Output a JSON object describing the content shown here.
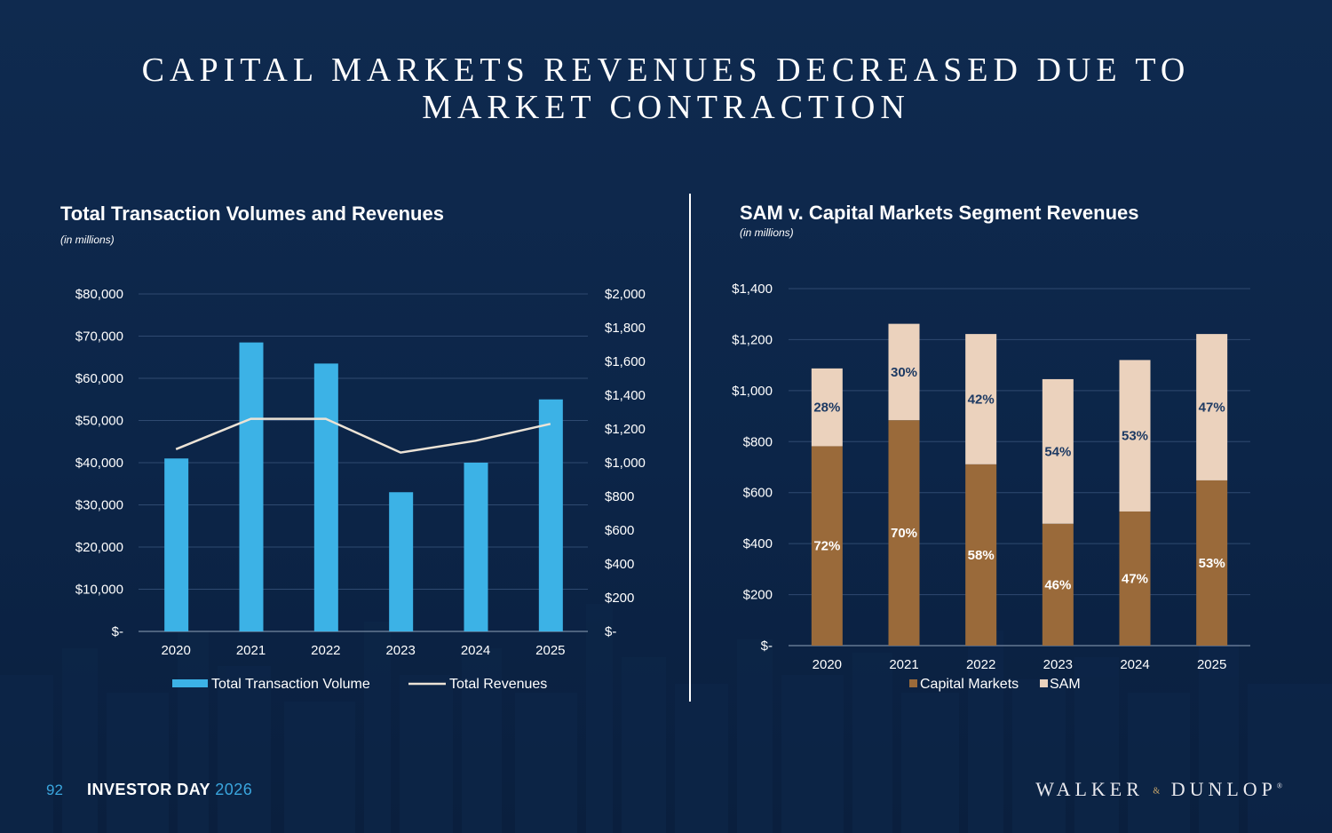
{
  "slide": {
    "title_line1": "CAPITAL MARKETS REVENUES DECREASED DUE TO",
    "title_line2": "MARKET CONTRACTION",
    "footer_page": "92",
    "footer_event": "INVESTOR DAY",
    "footer_year": "2026",
    "logo_left": "WALKER",
    "logo_amp": "&",
    "logo_right": "DUNLOP",
    "logo_reg": "®"
  },
  "colors": {
    "background": "#0c2548",
    "volume_bar": "#3cb2e6",
    "revenue_line": "#ece3d6",
    "capital_markets": "#9a6a3a",
    "sam": "#ebd2bd",
    "grid": "#2f4a70"
  },
  "chart_data": [
    {
      "type": "bar",
      "title": "Total Transaction Volumes and Revenues",
      "subtitle": "(in millions)",
      "categories": [
        "2020",
        "2021",
        "2022",
        "2023",
        "2024",
        "2025"
      ],
      "y_ticks": [
        "$-",
        "$10,000",
        "$20,000",
        "$30,000",
        "$40,000",
        "$50,000",
        "$60,000",
        "$70,000",
        "$80,000"
      ],
      "y2_ticks": [
        "$-",
        "$200",
        "$400",
        "$600",
        "$800",
        "$1,000",
        "$1,200",
        "$1,400",
        "$1,600",
        "$1,800",
        "$2,000"
      ],
      "ylim": [
        0,
        80000
      ],
      "y2lim": [
        0,
        2000
      ],
      "series": [
        {
          "name": "Total Transaction Volume",
          "type": "bar",
          "axis": "left",
          "values": [
            41000,
            68500,
            63500,
            33000,
            40000,
            55000
          ]
        },
        {
          "name": "Total Revenues",
          "type": "line",
          "axis": "right",
          "values": [
            1080,
            1260,
            1260,
            1060,
            1130,
            1230
          ]
        }
      ],
      "legend_position": "bottom"
    },
    {
      "type": "bar",
      "stacked": true,
      "title": "SAM v. Capital Markets Segment Revenues",
      "subtitle": "(in millions)",
      "categories": [
        "2020",
        "2021",
        "2022",
        "2023",
        "2024",
        "2025"
      ],
      "y_ticks": [
        "$-",
        "$200",
        "$400",
        "$600",
        "$800",
        "$1,000",
        "$1,200",
        "$1,400"
      ],
      "ylim": [
        0,
        1400
      ],
      "series": [
        {
          "name": "Capital Markets",
          "values": [
            782,
            884,
            711,
            478,
            526,
            648
          ],
          "labels": [
            "72%",
            "70%",
            "58%",
            "46%",
            "47%",
            "53%"
          ]
        },
        {
          "name": "SAM",
          "values": [
            305,
            378,
            511,
            567,
            594,
            574
          ],
          "labels": [
            "28%",
            "30%",
            "42%",
            "54%",
            "53%",
            "47%"
          ]
        }
      ],
      "legend_position": "bottom"
    }
  ]
}
